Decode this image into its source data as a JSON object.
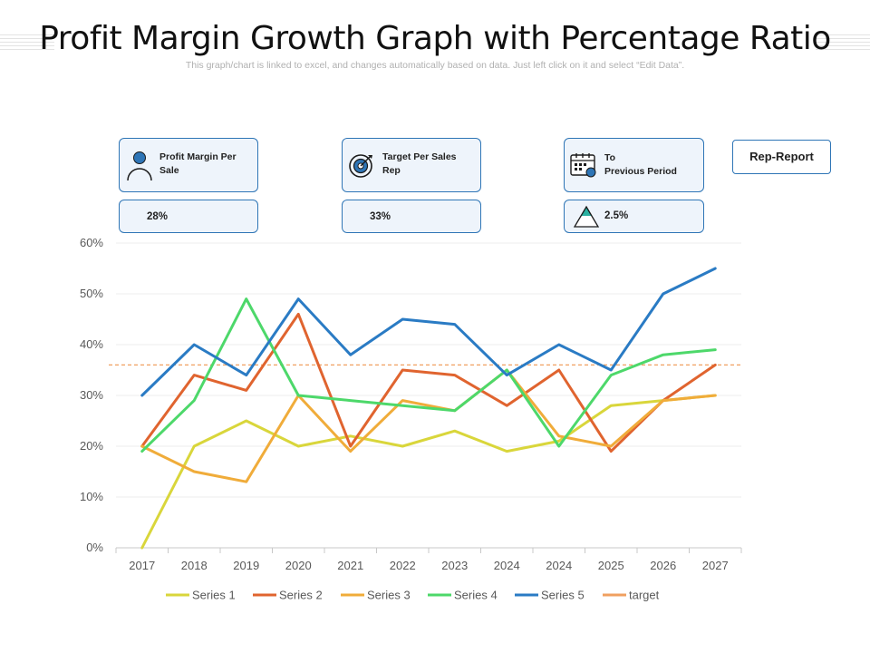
{
  "header": {
    "title": "Profit Margin Growth Graph with Percentage Ratio",
    "subtitle": "This graph/chart is linked to excel, and changes automatically based on data. Just left click on it and select “Edit Data”."
  },
  "cards": [
    {
      "label_line1": "Profit Margin Per",
      "label_line2": "Sale",
      "value": "28%",
      "icon": "user-icon"
    },
    {
      "label_line1": "Target Per Sales",
      "label_line2": "Rep",
      "value": "33%",
      "icon": "target-icon"
    },
    {
      "label_line1": "To",
      "label_line2": "Previous Period",
      "value": "2.5%",
      "icon": "calendar-icon",
      "value_icon": "triangle-up-icon"
    }
  ],
  "rep_button": "Rep-Report",
  "colors": {
    "accent": "#2e75b6",
    "series1": "#d9d63b",
    "series2": "#e0642f",
    "series3": "#f0ac3a",
    "series4": "#4dd86a",
    "series5": "#2a7bc4",
    "target": "#f0a060"
  },
  "chart_data": {
    "type": "line",
    "categories": [
      "2017",
      "2018",
      "2019",
      "2020",
      "2021",
      "2022",
      "2023",
      "2024",
      "2024",
      "2025",
      "2026",
      "2027"
    ],
    "ylim": [
      0,
      60
    ],
    "yticks": [
      "0%",
      "10%",
      "20%",
      "30%",
      "40%",
      "50%",
      "60%"
    ],
    "ytick_values": [
      0,
      10,
      20,
      30,
      40,
      50,
      60
    ],
    "series": [
      {
        "name": "Series 1",
        "values": [
          0,
          20,
          25,
          20,
          22,
          20,
          23,
          19,
          21,
          28,
          29,
          30
        ]
      },
      {
        "name": "Series 2",
        "values": [
          20,
          34,
          31,
          46,
          20,
          35,
          34,
          28,
          35,
          19,
          29,
          36
        ]
      },
      {
        "name": "Series 3",
        "values": [
          20,
          15,
          13,
          30,
          19,
          29,
          27,
          35,
          22,
          20,
          29,
          30
        ]
      },
      {
        "name": "Series 4",
        "values": [
          19,
          29,
          49,
          30,
          29,
          28,
          27,
          35,
          20,
          34,
          38,
          39
        ]
      },
      {
        "name": "Series 5",
        "values": [
          30,
          40,
          34,
          49,
          38,
          45,
          44,
          34,
          40,
          35,
          50,
          55
        ]
      }
    ],
    "target": {
      "name": "target",
      "value": 36
    },
    "legend": [
      "Series 1",
      "Series 2",
      "Series 3",
      "Series 4",
      "Series 5",
      "target"
    ],
    "legend_position": "bottom"
  }
}
